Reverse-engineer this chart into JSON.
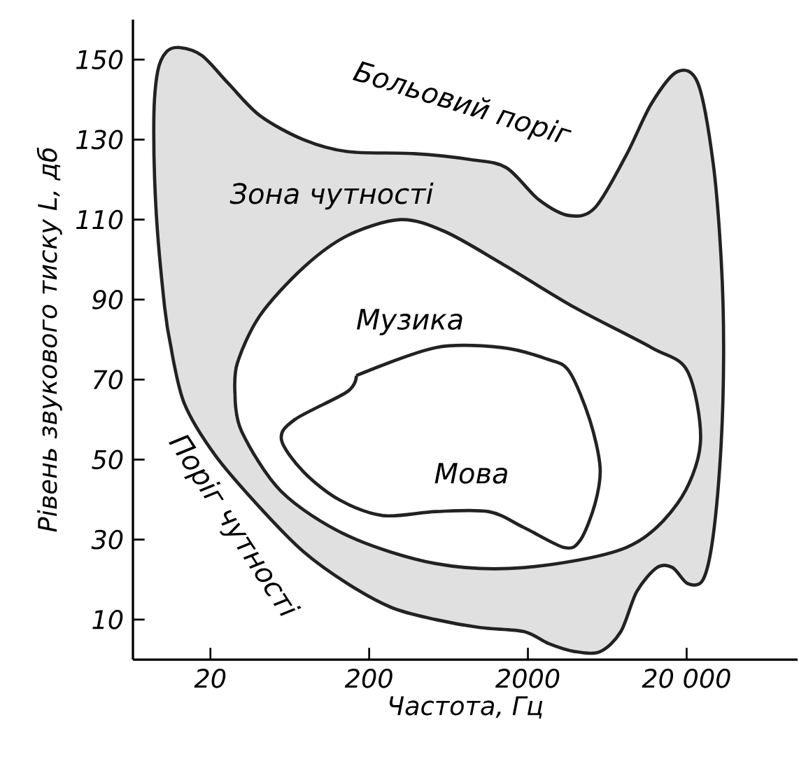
{
  "chart_data": {
    "type": "area",
    "xlabel": "Частота, Гц",
    "ylabel": "Рівень звукового тиску L, дб",
    "log": "x",
    "xlim": [
      6.5,
      100000
    ],
    "ylim": [
      0,
      160
    ],
    "xticks": [
      20,
      200,
      2000,
      {
        "value": 20000,
        "label": "20 000"
      }
    ],
    "yticks": [
      10,
      30,
      50,
      70,
      90,
      110,
      130,
      150
    ],
    "series": [
      {
        "color": "#222222",
        "x": [
          11.3,
          10.3,
          9.1,
          8.8,
          9.3,
          10.6,
          12.9,
          17.7,
          26,
          41,
          77,
          146,
          382,
          877,
          1460,
          2340,
          3650,
          5300,
          8300,
          12000,
          17500,
          23600,
          29400,
          33000,
          34200,
          33000,
          29400,
          25400,
          20300,
          16300,
          13000,
          9700,
          7700,
          5700,
          3950,
          2700,
          1890,
          1000,
          525,
          277,
          146,
          77,
          41,
          21.5,
          13.7
        ],
        "values": [
          78,
          88,
          112,
          135,
          147,
          152,
          153,
          151,
          144,
          136,
          130,
          127,
          126.5,
          125,
          123,
          115,
          111,
          113,
          126,
          139,
          147,
          144,
          124,
          100,
          78,
          54,
          31,
          20,
          19,
          23,
          23,
          17,
          7,
          2,
          2,
          4,
          7,
          8,
          10,
          13,
          19,
          27,
          38,
          51,
          64
        ]
      },
      {
        "color": "#222222",
        "x": [
          28.6,
          29.5,
          41,
          77,
          146,
          315,
          600,
          1370,
          3950,
          12000,
          20300,
          24400,
          17500,
          8300,
          1890,
          525,
          146,
          56,
          31.5
        ],
        "values": [
          66,
          74,
          86,
          98,
          106,
          110,
          107,
          99,
          88,
          78,
          72,
          54,
          39,
          28,
          23,
          24,
          31,
          42,
          57
        ]
      },
      {
        "color": "#222222",
        "x": [
          166,
          525,
          1370,
          2700,
          3650,
          4900,
          5700,
          5300,
          4300,
          3400,
          1890,
          1130,
          525,
          244,
          129,
          77,
          56,
          68,
          146
        ],
        "values": [
          71,
          78,
          78,
          75,
          72,
          60,
          48,
          39,
          30,
          28,
          33,
          37,
          37,
          36,
          40,
          47,
          55,
          60,
          67
        ]
      }
    ],
    "annotations": [
      "Больовий поріг",
      "Зона чутності",
      "Музика",
      "Мова",
      "Поріг чутності"
    ]
  }
}
